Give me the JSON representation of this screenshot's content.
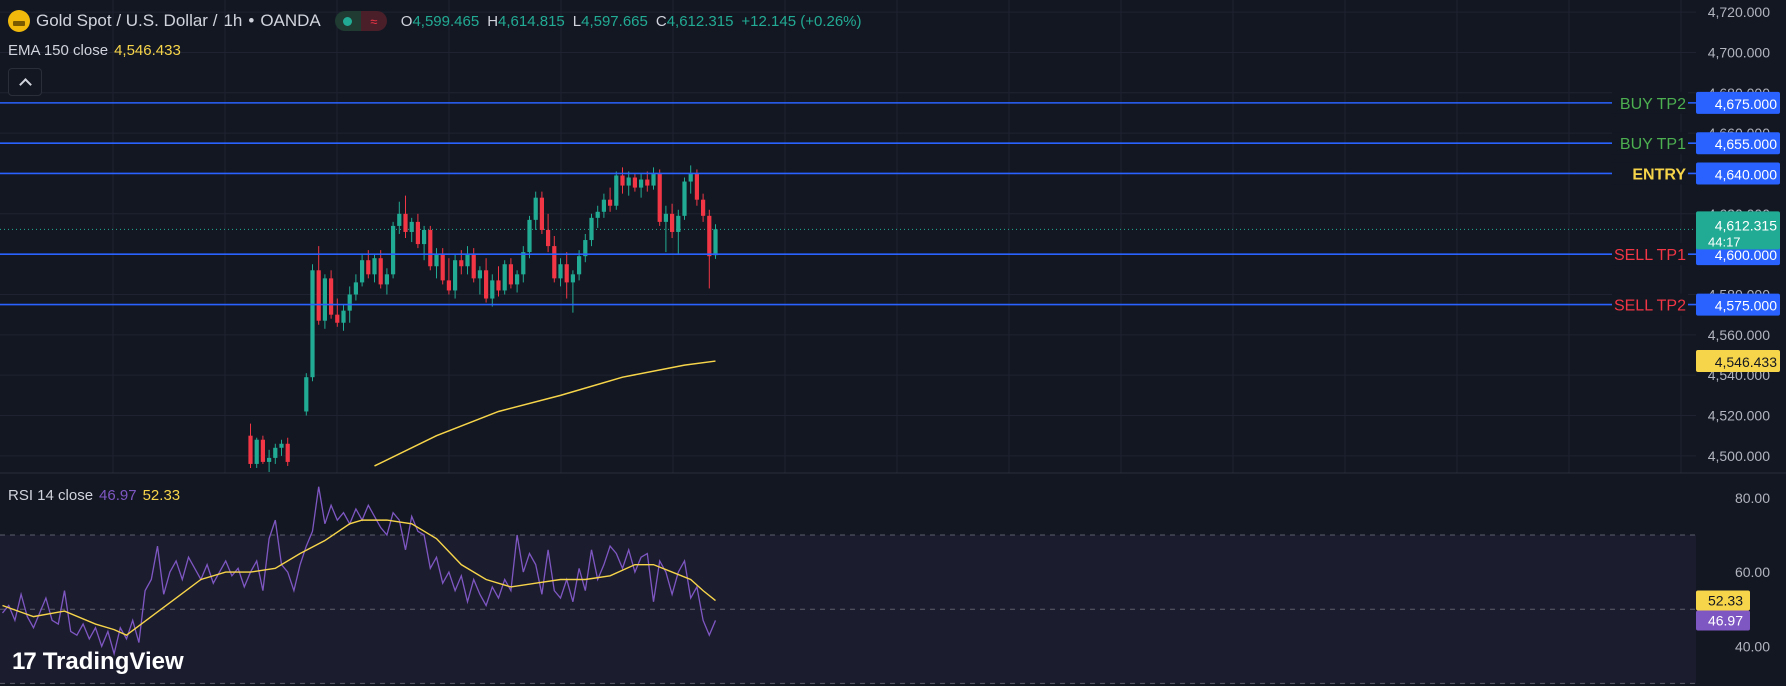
{
  "header": {
    "symbol": "Gold Spot / U.S. Dollar",
    "interval": "1h",
    "broker": "OANDA",
    "open_label": "O",
    "open": "4,599.465",
    "high_label": "H",
    "high": "4,614.815",
    "low_label": "L",
    "low": "4,597.665",
    "close_label": "C",
    "close": "4,612.315",
    "change": "+12.145 (+0.26%)"
  },
  "indicators": {
    "ema_label": "EMA 150 close",
    "ema_value": "4,546.433",
    "rsi_label": "RSI 14 close",
    "rsi_value": "46.97",
    "rsi_ma_value": "52.33"
  },
  "watermark": {
    "logo": "17",
    "text": "TradingView"
  },
  "colors": {
    "background": "#131722",
    "up": "#22ab94",
    "down": "#f23645",
    "level_line": "#2962ff",
    "ema": "#f7d54a",
    "rsi": "#7e57c2",
    "buy_label": "#4caf50",
    "sell_label": "#f23645",
    "entry_label": "#f7d54a"
  },
  "chart_data": [
    {
      "type": "candlestick",
      "pane": "price",
      "ylim": [
        4492,
        4726
      ],
      "y_ticks": [
        "4,500.000",
        "4,520.000",
        "4,540.000",
        "4,560.000",
        "4,580.000",
        "4,600.000",
        "4,620.000",
        "4,640.000",
        "4,660.000",
        "4,680.000",
        "4,700.000",
        "4,720.000"
      ],
      "last_price": {
        "value": 4612.315,
        "label": "4,612.315",
        "countdown": "44:17"
      },
      "levels": [
        {
          "name": "BUY TP2",
          "value": 4675,
          "label": "4,675.000",
          "kind": "buy"
        },
        {
          "name": "BUY TP1",
          "value": 4655,
          "label": "4,655.000",
          "kind": "buy"
        },
        {
          "name": "ENTRY",
          "value": 4640,
          "label": "4,640.000",
          "kind": "entry"
        },
        {
          "name": "SELL TP1",
          "value": 4600,
          "label": "4,600.000",
          "kind": "sell"
        },
        {
          "name": "SELL TP2",
          "value": 4575,
          "label": "4,575.000",
          "kind": "sell"
        }
      ],
      "ema": {
        "label": "4,546.433",
        "points": [
          [
            60,
            4495
          ],
          [
            70,
            4510
          ],
          [
            80,
            4522
          ],
          [
            90,
            4530
          ],
          [
            100,
            4539
          ],
          [
            110,
            4545
          ],
          [
            115,
            4547
          ]
        ]
      },
      "candles": [
        [
          40,
          4510,
          4516,
          4494,
          4496
        ],
        [
          41,
          4496,
          4509,
          4494,
          4508
        ],
        [
          42,
          4508,
          4510,
          4496,
          4497
        ],
        [
          43,
          4497,
          4503,
          4492,
          4499
        ],
        [
          44,
          4499,
          4506,
          4496,
          4504
        ],
        [
          45,
          4504,
          4508,
          4500,
          4506
        ],
        [
          46,
          4506,
          4509,
          4495,
          4497
        ],
        [
          49,
          4522,
          4541,
          4520,
          4539
        ],
        [
          50,
          4539,
          4595,
          4537,
          4592
        ],
        [
          51,
          4592,
          4604,
          4565,
          4567
        ],
        [
          52,
          4567,
          4590,
          4563,
          4588
        ],
        [
          53,
          4588,
          4592,
          4568,
          4570
        ],
        [
          54,
          4570,
          4578,
          4564,
          4566
        ],
        [
          55,
          4566,
          4575,
          4562,
          4572
        ],
        [
          56,
          4572,
          4584,
          4566,
          4580
        ],
        [
          57,
          4580,
          4590,
          4577,
          4586
        ],
        [
          58,
          4586,
          4600,
          4584,
          4597
        ],
        [
          59,
          4597,
          4602,
          4588,
          4590
        ],
        [
          60,
          4590,
          4600,
          4586,
          4598
        ],
        [
          61,
          4598,
          4602,
          4583,
          4585
        ],
        [
          62,
          4585,
          4593,
          4580,
          4590
        ],
        [
          63,
          4590,
          4616,
          4588,
          4614
        ],
        [
          64,
          4614,
          4626,
          4610,
          4620
        ],
        [
          65,
          4620,
          4629,
          4608,
          4611
        ],
        [
          66,
          4611,
          4618,
          4606,
          4616
        ],
        [
          67,
          4616,
          4620,
          4603,
          4605
        ],
        [
          68,
          4605,
          4614,
          4597,
          4612
        ],
        [
          69,
          4612,
          4614,
          4592,
          4594
        ],
        [
          70,
          4594,
          4603,
          4588,
          4600
        ],
        [
          71,
          4600,
          4603,
          4585,
          4587
        ],
        [
          72,
          4587,
          4598,
          4580,
          4582
        ],
        [
          73,
          4582,
          4600,
          4578,
          4597
        ],
        [
          74,
          4597,
          4602,
          4590,
          4594
        ],
        [
          75,
          4594,
          4604,
          4590,
          4600
        ],
        [
          76,
          4600,
          4603,
          4586,
          4588
        ],
        [
          77,
          4588,
          4594,
          4580,
          4592
        ],
        [
          78,
          4592,
          4598,
          4576,
          4578
        ],
        [
          79,
          4578,
          4590,
          4574,
          4587
        ],
        [
          80,
          4587,
          4594,
          4579,
          4582
        ],
        [
          81,
          4582,
          4597,
          4580,
          4595
        ],
        [
          82,
          4595,
          4598,
          4583,
          4585
        ],
        [
          83,
          4585,
          4592,
          4581,
          4590
        ],
        [
          84,
          4590,
          4604,
          4586,
          4601
        ],
        [
          85,
          4601,
          4619,
          4598,
          4617
        ],
        [
          86,
          4617,
          4631,
          4612,
          4628
        ],
        [
          87,
          4628,
          4631,
          4610,
          4612
        ],
        [
          88,
          4612,
          4620,
          4601,
          4604
        ],
        [
          89,
          4604,
          4609,
          4586,
          4588
        ],
        [
          90,
          4588,
          4598,
          4584,
          4595
        ],
        [
          91,
          4595,
          4601,
          4578,
          4586
        ],
        [
          92,
          4586,
          4592,
          4571,
          4590
        ],
        [
          93,
          4590,
          4602,
          4587,
          4599
        ],
        [
          94,
          4599,
          4610,
          4596,
          4607
        ],
        [
          95,
          4607,
          4620,
          4604,
          4618
        ],
        [
          96,
          4618,
          4624,
          4613,
          4621
        ],
        [
          97,
          4621,
          4630,
          4618,
          4627
        ],
        [
          98,
          4627,
          4633,
          4621,
          4624
        ],
        [
          99,
          4624,
          4641,
          4622,
          4639
        ],
        [
          100,
          4639,
          4643,
          4630,
          4634
        ],
        [
          101,
          4634,
          4641,
          4629,
          4638
        ],
        [
          102,
          4638,
          4640,
          4631,
          4633
        ],
        [
          103,
          4633,
          4640,
          4628,
          4637
        ],
        [
          104,
          4637,
          4641,
          4631,
          4634
        ],
        [
          105,
          4634,
          4643,
          4632,
          4640
        ],
        [
          106,
          4640,
          4642,
          4614,
          4616
        ],
        [
          107,
          4616,
          4624,
          4601,
          4620
        ],
        [
          108,
          4620,
          4625,
          4608,
          4611
        ],
        [
          109,
          4611,
          4622,
          4600,
          4619
        ],
        [
          110,
          4619,
          4638,
          4617,
          4636
        ],
        [
          111,
          4636,
          4644,
          4630,
          4640
        ],
        [
          112,
          4640,
          4642,
          4624,
          4627
        ],
        [
          113,
          4627,
          4630,
          4616,
          4619
        ],
        [
          114,
          4619,
          4622,
          4583,
          4599
        ],
        [
          115,
          4599.465,
          4614.815,
          4597.665,
          4612.315
        ]
      ]
    },
    {
      "type": "line",
      "pane": "rsi",
      "ylim": [
        32,
        84
      ],
      "y_ticks": [
        "40.00",
        "60.00",
        "80.00"
      ],
      "bands": [
        30,
        50,
        70
      ],
      "series": [
        {
          "role": "rsi",
          "value_label": "46.97",
          "values": [
            [
              0,
              49
            ],
            [
              1,
              51
            ],
            [
              2,
              47
            ],
            [
              3,
              54
            ],
            [
              4,
              48
            ],
            [
              5,
              45
            ],
            [
              6,
              49
            ],
            [
              7,
              53
            ],
            [
              8,
              47
            ],
            [
              9,
              46
            ],
            [
              10,
              55
            ],
            [
              11,
              44
            ],
            [
              12,
              43
            ],
            [
              13,
              46
            ],
            [
              14,
              42
            ],
            [
              15,
              45
            ],
            [
              16,
              40
            ],
            [
              17,
              44
            ],
            [
              18,
              38
            ],
            [
              19,
              45
            ],
            [
              20,
              42
            ],
            [
              21,
              47
            ],
            [
              22,
              41
            ],
            [
              23,
              55
            ],
            [
              24,
              58
            ],
            [
              25,
              67
            ],
            [
              26,
              54
            ],
            [
              27,
              60
            ],
            [
              28,
              63
            ],
            [
              29,
              58
            ],
            [
              30,
              64
            ],
            [
              31,
              61
            ],
            [
              32,
              58
            ],
            [
              33,
              62
            ],
            [
              34,
              57
            ],
            [
              35,
              60
            ],
            [
              36,
              63
            ],
            [
              37,
              59
            ],
            [
              38,
              61
            ],
            [
              39,
              56
            ],
            [
              40,
              60
            ],
            [
              41,
              63
            ],
            [
              42,
              55
            ],
            [
              43,
              69
            ],
            [
              44,
              74
            ],
            [
              45,
              62
            ],
            [
              46,
              60
            ],
            [
              47,
              55
            ],
            [
              48,
              62
            ],
            [
              49,
              67
            ],
            [
              50,
              71
            ],
            [
              51,
              83
            ],
            [
              52,
              73
            ],
            [
              53,
              78
            ],
            [
              54,
              74
            ],
            [
              55,
              76
            ],
            [
              56,
              73
            ],
            [
              57,
              77
            ],
            [
              58,
              74
            ],
            [
              59,
              78
            ],
            [
              60,
              75
            ],
            [
              61,
              72
            ],
            [
              62,
              70
            ],
            [
              63,
              76
            ],
            [
              64,
              74
            ],
            [
              65,
              66
            ],
            [
              66,
              75
            ],
            [
              67,
              71
            ],
            [
              68,
              70
            ],
            [
              69,
              61
            ],
            [
              70,
              64
            ],
            [
              71,
              57
            ],
            [
              72,
              60
            ],
            [
              73,
              55
            ],
            [
              74,
              59
            ],
            [
              75,
              52
            ],
            [
              76,
              58
            ],
            [
              77,
              54
            ],
            [
              78,
              51
            ],
            [
              79,
              56
            ],
            [
              80,
              53
            ],
            [
              81,
              58
            ],
            [
              82,
              55
            ],
            [
              83,
              70
            ],
            [
              84,
              60
            ],
            [
              85,
              65
            ],
            [
              86,
              62
            ],
            [
              87,
              54
            ],
            [
              88,
              66
            ],
            [
              89,
              55
            ],
            [
              90,
              53
            ],
            [
              91,
              58
            ],
            [
              92,
              52
            ],
            [
              93,
              61
            ],
            [
              94,
              55
            ],
            [
              95,
              66
            ],
            [
              96,
              58
            ],
            [
              97,
              62
            ],
            [
              98,
              67
            ],
            [
              99,
              65
            ],
            [
              100,
              61
            ],
            [
              101,
              66
            ],
            [
              102,
              60
            ],
            [
              103,
              64
            ],
            [
              104,
              65
            ],
            [
              105,
              52
            ],
            [
              106,
              63
            ],
            [
              107,
              60
            ],
            [
              108,
              54
            ],
            [
              109,
              60
            ],
            [
              110,
              63
            ],
            [
              111,
              53
            ],
            [
              112,
              56
            ],
            [
              113,
              47
            ],
            [
              114,
              43
            ],
            [
              115,
              46.97
            ]
          ]
        },
        {
          "role": "rsi_ma",
          "value_label": "52.33",
          "values": [
            [
              0,
              51
            ],
            [
              5,
              48
            ],
            [
              10,
              49.5
            ],
            [
              15,
              46
            ],
            [
              18,
              44.5
            ],
            [
              20,
              43
            ],
            [
              24,
              48
            ],
            [
              28,
              53
            ],
            [
              32,
              58
            ],
            [
              36,
              60
            ],
            [
              40,
              60
            ],
            [
              44,
              61
            ],
            [
              48,
              65
            ],
            [
              52,
              68.5
            ],
            [
              56,
              73
            ],
            [
              58,
              74
            ],
            [
              62,
              74
            ],
            [
              66,
              73
            ],
            [
              70,
              69
            ],
            [
              74,
              62
            ],
            [
              78,
              58
            ],
            [
              82,
              56
            ],
            [
              86,
              57
            ],
            [
              90,
              58
            ],
            [
              94,
              58
            ],
            [
              98,
              59
            ],
            [
              102,
              62
            ],
            [
              105,
              62
            ],
            [
              108,
              60
            ],
            [
              111,
              58
            ],
            [
              113,
              55
            ],
            [
              115,
              52.33
            ]
          ]
        }
      ]
    }
  ]
}
